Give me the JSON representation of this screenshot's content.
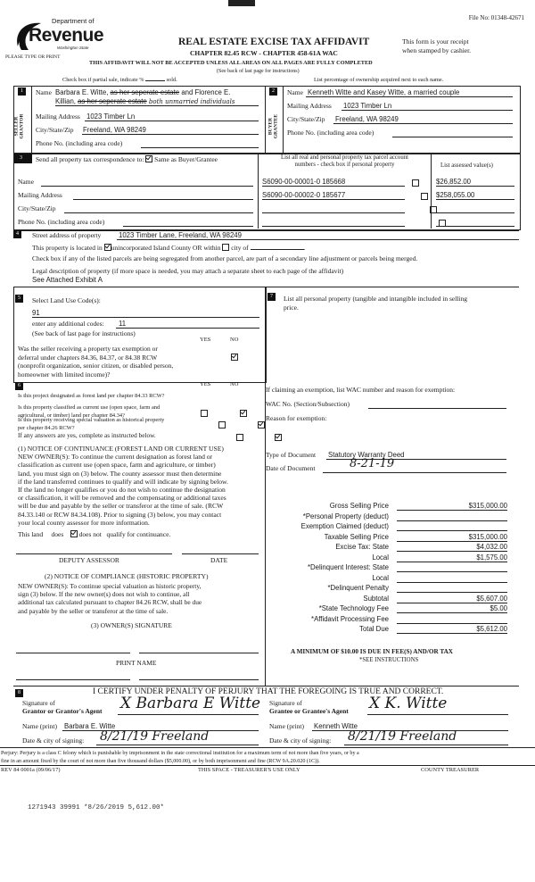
{
  "header": {
    "file_no": "File No: 01348-42671",
    "logo_top": "Department of",
    "logo_main": "Revenue",
    "logo_sub": "Washington State",
    "type_or_print": "PLEASE TYPE OR PRINT",
    "title": "REAL ESTATE EXCISE TAX AFFIDAVIT",
    "chapter": "CHAPTER 82.45 RCW - CHAPTER 458-61A WAC",
    "receipt_1": "This form is your receipt",
    "receipt_2": "when stamped by cashier.",
    "warning": "THIS AFFIDAVIT WILL NOT BE ACCEPTED UNLESS ALL AREAS ON ALL PAGES ARE FULLY COMPLETED",
    "see_back": "(See back of last page for instructions)",
    "partial_sale": "Check box if partial sale, indicate %",
    "sold": "sold.",
    "ownership_note": "List percentage of ownership acquired next to each name."
  },
  "seller": {
    "num": "1",
    "side_label": "SELLER GRANTOR",
    "name_label": "Name",
    "name_1": "Barbara E. Witte,",
    "name_strike_1": "as her seperate estate",
    "name_2": "and Florence E.",
    "name_3": "Killian,",
    "name_strike_2": "as her seperate estate",
    "name_hand": "both unmarried individuals",
    "mailing_label": "Mailing Address",
    "mailing": "1023 Timber Ln",
    "city_label": "City/State/Zip",
    "city": "Freeland, WA 98249",
    "phone_label": "Phone No. (including area code)",
    "phone": ""
  },
  "buyer": {
    "num": "2",
    "side_label": "BUYER GRANTEE",
    "name_label": "Name",
    "name": "Kenneth Witte and Kasey Witte, a married couple",
    "mailing_label": "Mailing Address",
    "mailing": "1023 Timber Ln",
    "city_label": "City/State/Zip",
    "city": "Freeland, WA 98249",
    "phone_label": "Phone No. (including area code)",
    "phone": ""
  },
  "correspondence": {
    "num": "3",
    "label": "Send all property tax correspondence to:",
    "same_label": "Same as Buyer/Grantee",
    "same_checked": true,
    "name_label": "Name",
    "mailing_label": "Mailing Address",
    "city_label": "City/State/Zip",
    "phone_label": "Phone No. (including area code)"
  },
  "parcels": {
    "header_1": "List all real and personal property tax parcel account",
    "header_2": "numbers - check box if personal property",
    "value_header": "List assessed value(s)",
    "rows": [
      {
        "parcel": "S6090-00-00001-0  185668",
        "personal": false,
        "value": "$26,852.00"
      },
      {
        "parcel": "S6090-00-00002-0  185677",
        "personal": false,
        "value": "$258,055.00"
      },
      {
        "parcel": "",
        "personal": false,
        "value": ""
      },
      {
        "parcel": "",
        "personal": false,
        "value": ""
      }
    ]
  },
  "property": {
    "num": "4",
    "street_label": "Street address of property",
    "street": "1023 Timber Lane, Freeland, WA 98249",
    "located_pre": "This property is located in",
    "located_uninc": "unincorporated Island County OR within",
    "located_city": "city of",
    "uninc_checked": true,
    "city_checked": false,
    "segregated": "Check box if any of the listed parcels are being segregated from another parcel, are part of a secondary line adjustment or parcels being merged.",
    "legal_label": "Legal description of property (if more space is needed, you may attach a separate sheet to each page of the affidavit)",
    "legal": "See Attached Exhibit A"
  },
  "land_use": {
    "num": "5",
    "label": "Select Land Use Code(s):",
    "code": "91",
    "additional_label": "enter any additional codes:",
    "additional": "11",
    "see_back": "(See back of last page for instructions)",
    "yes": "YES",
    "no": "NO",
    "exemption_q": [
      "Was the seller receiving a property tax exemption or",
      "deferral under chapters 84.36, 84.37, or 84.38 RCW",
      "(nonprofit organization, senior citizen, or disabled person,",
      "homeowner with limited income)?"
    ],
    "exemption_answer": "NO"
  },
  "section6": {
    "num": "6",
    "yes": "YES",
    "no": "NO",
    "questions": [
      {
        "text": [
          "Is this project designated as forest land per chapter 84.33 RCW?"
        ],
        "answer": "NO"
      },
      {
        "text": [
          "Is this property classified as current use (open space, farm and",
          "agricultural, or timber) land per chapter 84.34?"
        ],
        "answer": "NO"
      },
      {
        "text": [
          "Is this property receiving special valuation as historical property",
          "per chapter 84.26 RCW?"
        ],
        "answer": "NO"
      }
    ],
    "if_yes": "If any answers are yes, complete as instructed below.",
    "notice1": [
      "(1) NOTICE OF CONTINUANCE (FOREST LAND OR CURRENT USE)",
      "NEW OWNER(S):  To continue the current designation as forest land or",
      "classification as current use (open space, farm and agriculture, or timber)",
      "land, you must sign on (3) below.  The county assessor must then determine",
      "if the land transferred continues to qualify and will indicate by signing below.",
      "If the land no longer qualifies or you do not wish to continue the designation",
      "or classification, it will be removed and the compensating or additional taxes",
      "will be due and payable by the seller or transferor at the time of sale.  (RCW",
      "84.33.140 or RCW 84.34.108).  Prior to signing (3) below, you may contact",
      "your local county assessor for more information."
    ],
    "this_land": "This land",
    "does": "does",
    "does_not": "does not",
    "qualify": "qualify for continuance.",
    "does_not_checked": true,
    "deputy": "DEPUTY ASSESSOR",
    "date": "DATE",
    "notice2_title": "(2) NOTICE OF COMPLIANCE (HISTORIC PROPERTY)",
    "notice2": [
      "NEW OWNER(S):  To continue special valuation as historic property,",
      "sign (3) below.  If the new owner(s) does not wish to continue, all",
      "additional tax calculated pursuant to chapter 84.26 RCW, shall be due",
      "and payable by the seller or transferor at the time of sale."
    ],
    "owner_sig": "(3) OWNER(S) SIGNATURE",
    "print_name": "PRINT NAME"
  },
  "section7": {
    "num": "7",
    "label_1": "List all personal property (tangible and intangible included in selling",
    "label_2": "price.",
    "exemption": "If claiming an exemption, list WAC number and reason for exemption:",
    "wac_label": "WAC No. (Section/Subsection)",
    "reason_label": "Reason for exemption:",
    "doc_type_label": "Type of Document",
    "doc_type": "Statutory Warranty Deed",
    "doc_date_label": "Date of Document",
    "doc_date": "8-21-19"
  },
  "tax": {
    "rows": [
      {
        "label": "Gross Selling Price",
        "value": "$315,000.00"
      },
      {
        "label": "*Personal Property (deduct)",
        "value": ""
      },
      {
        "label": "Exemption Claimed (deduct)",
        "value": ""
      },
      {
        "label": "Taxable Selling Price",
        "value": "$315,000.00"
      },
      {
        "label": "Excise Tax:  State",
        "value": "$4,032.00"
      },
      {
        "label": "Local",
        "value": "$1,575.00"
      },
      {
        "label": "*Delinquent Interest:  State",
        "value": ""
      },
      {
        "label": "Local",
        "value": ""
      },
      {
        "label": "*Delinquent Penalty",
        "value": ""
      },
      {
        "label": "Subtotal",
        "value": "$5,607.00"
      },
      {
        "label": "*State Technology Fee",
        "value": "$5.00"
      },
      {
        "label": "*Affidavit Processing Fee",
        "value": ""
      },
      {
        "label": "Total Due",
        "value": "$5,612.00"
      }
    ],
    "minimum": "A MINIMUM OF $10.00 IS DUE IN FEE(S) AND/OR TAX",
    "see_instructions": "*SEE INSTRUCTIONS"
  },
  "certify": {
    "num": "8",
    "title": "I CERTIFY UNDER PENALTY OF PERJURY THAT THE FOREGOING IS TRUE AND CORRECT.",
    "sig_of": "Signature of",
    "grantor_agent": "Grantor or Grantor's Agent",
    "grantor_sig": "X Barbara E Witte",
    "grantee_agent": "Grantee or Grantee's Agent",
    "grantee_sig": "X K. Witte",
    "name_print_label": "Name (print)",
    "grantor_name": "Barbara E. Witte",
    "grantee_name": "Kenneth Witte",
    "date_city_label": "Date & city of signing:",
    "grantor_date_city": "8/21/19 Freeland",
    "grantee_date_city": "8/21/19 Freeland"
  },
  "footer": {
    "perjury_1": "Perjury:  Perjury is a class C felony which is punishable by imprisonment in the state correctional institution for a maximum term of not more than five years, or by a",
    "perjury_2": "fine in an amount fixed by the court of not more than five thousand dollars ($5,000.00), or by both imprisonment and fine (RCW 9A.20.020 (1C)).",
    "rev": "REV 84 0001a (09/06/17)",
    "treasurer_space": "THIS SPACE - TREASURER'S USE ONLY",
    "county_treasurer": "COUNTY TREASURER",
    "stamp": "1271943 39991 *8/26/2019 5,612.00*"
  }
}
